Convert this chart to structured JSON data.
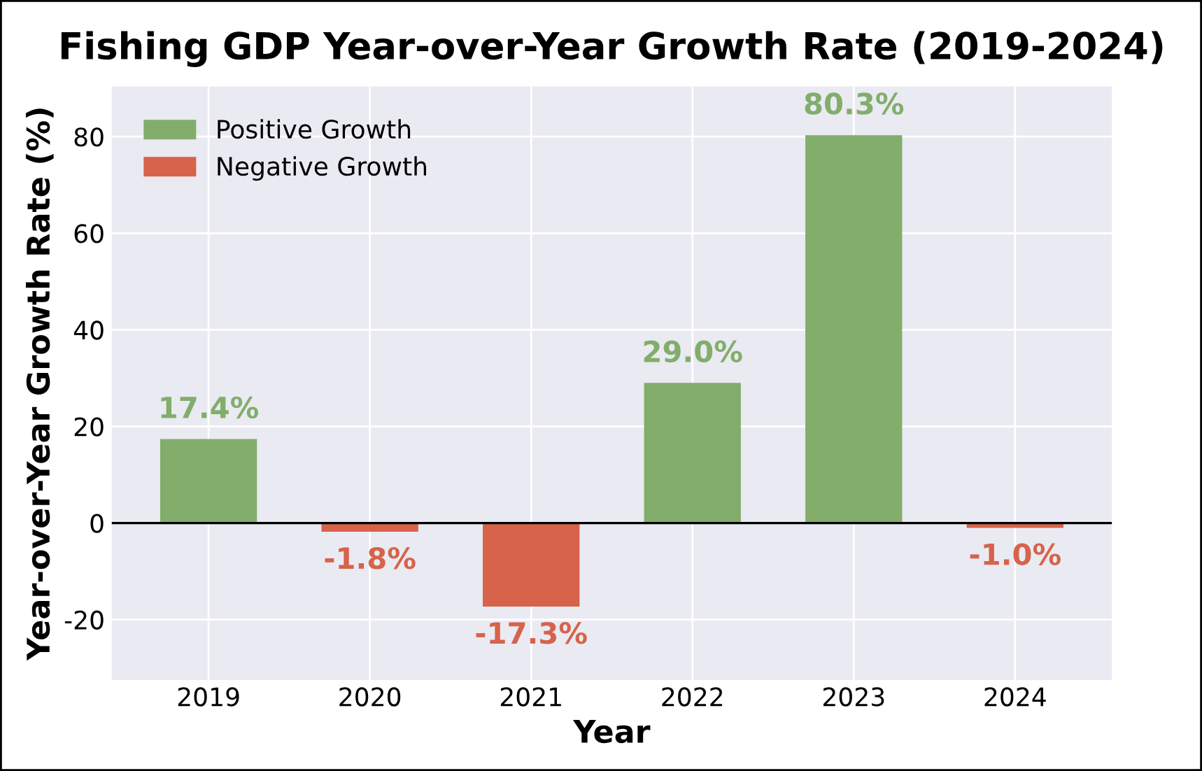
{
  "chart_data": {
    "type": "bar",
    "title": "Fishing GDP Year-over-Year Growth Rate (2019-2024)",
    "xlabel": "Year",
    "ylabel": "Year-over-Year Growth Rate (%)",
    "categories": [
      "2019",
      "2020",
      "2021",
      "2022",
      "2023",
      "2024"
    ],
    "series": [
      {
        "name": "Positive Growth",
        "color": "#82ad6b",
        "values": [
          17.4,
          null,
          null,
          29.0,
          80.3,
          null
        ],
        "value_labels": [
          "17.4%",
          null,
          null,
          "29.0%",
          "80.3%",
          null
        ]
      },
      {
        "name": "Negative Growth",
        "color": "#d6634a",
        "values": [
          null,
          -1.8,
          -17.3,
          null,
          null,
          -1.0
        ],
        "value_labels": [
          null,
          "-1.8%",
          "-17.3%",
          null,
          null,
          "-1.0%"
        ]
      }
    ],
    "ylim": [
      -32.5,
      90.4
    ],
    "yticks": [
      -20,
      0,
      20,
      40,
      60,
      80
    ],
    "ref_lines": [
      {
        "axis": "y",
        "value": 0,
        "color": "#000000",
        "line_style": "solid"
      }
    ],
    "grid": true,
    "legend": "top left"
  }
}
